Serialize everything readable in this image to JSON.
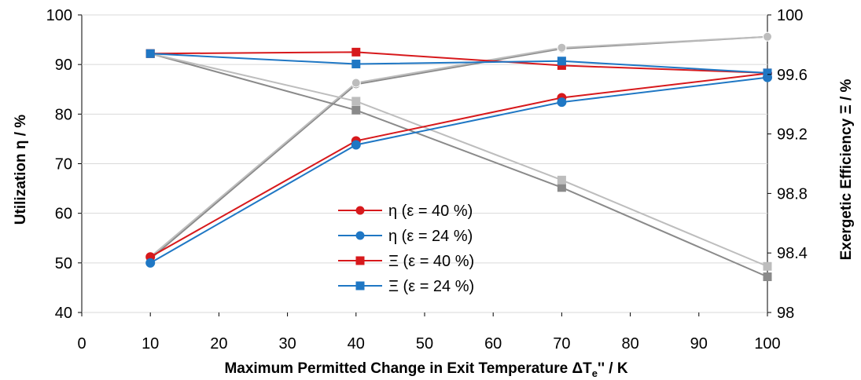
{
  "chart_data": {
    "type": "line",
    "title": "",
    "xlabel_main": "Maximum Permitted Change in Exit Temperature ΔT",
    "xlabel_sub": "e",
    "xlabel_suffix": "'' / K",
    "ylabel": "Utilization η / %",
    "y2label": "Exergetic Efficiency Ξ / %",
    "xlim": [
      0,
      100
    ],
    "ylim": [
      40,
      100
    ],
    "y2lim": [
      98,
      100
    ],
    "x_ticks": [
      "0",
      "10",
      "20",
      "30",
      "40",
      "50",
      "60",
      "70",
      "80",
      "90",
      "100"
    ],
    "y_ticks": [
      "40",
      "50",
      "60",
      "70",
      "80",
      "90",
      "100"
    ],
    "y2_ticks": [
      "98",
      "98.4",
      "98.8",
      "99.2",
      "99.6",
      "100"
    ],
    "x": [
      10,
      40,
      70,
      100
    ],
    "series": [
      {
        "name": "η (ε = 40 %)",
        "axis": "left",
        "marker": "circle",
        "color": "#d7191c",
        "values": [
          51.2,
          74.6,
          83.3,
          88.2
        ]
      },
      {
        "name": "η (ε = 24 %)",
        "axis": "left",
        "marker": "circle",
        "color": "#1f77c4",
        "values": [
          50.0,
          73.8,
          82.4,
          87.4
        ]
      },
      {
        "name": "Ξ (ε = 40 %)",
        "axis": "right",
        "marker": "square",
        "color": "#d7191c",
        "values": [
          99.74,
          99.75,
          99.66,
          99.61
        ]
      },
      {
        "name": "Ξ (ε = 24 %)",
        "axis": "right",
        "marker": "square",
        "color": "#1f77c4",
        "values": [
          99.74,
          99.67,
          99.69,
          99.61
        ]
      },
      {
        "axis": "left",
        "marker": "circle",
        "color": "#8a8a8a",
        "values": [
          50.8,
          86.0,
          93.2,
          95.6
        ]
      },
      {
        "axis": "left",
        "marker": "circle",
        "color": "#bdbdbd",
        "values": [
          51.2,
          86.3,
          93.4,
          95.6
        ]
      },
      {
        "axis": "right",
        "marker": "square",
        "color": "#8a8a8a",
        "values": [
          99.74,
          99.36,
          98.84,
          98.24
        ]
      },
      {
        "axis": "right",
        "marker": "square",
        "color": "#bdbdbd",
        "values": [
          99.74,
          99.42,
          98.89,
          98.31
        ]
      }
    ]
  }
}
